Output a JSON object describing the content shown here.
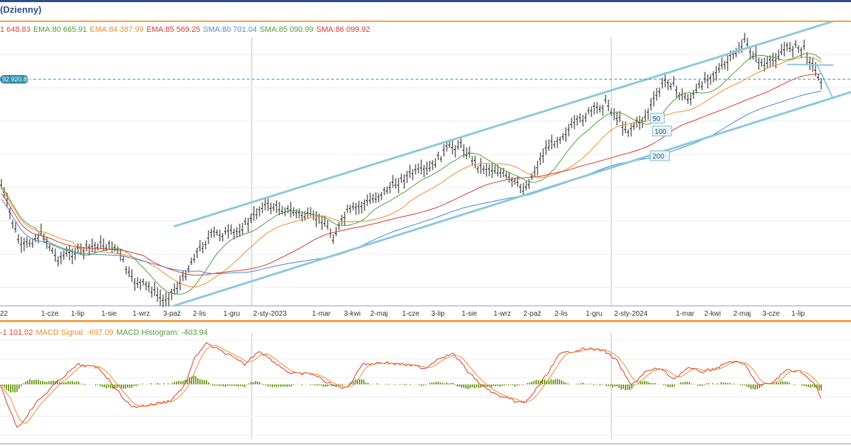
{
  "header": {
    "title": "Dzienny)"
  },
  "legend": {
    "items": [
      {
        "text": "1 648.83",
        "color": "#e0462f"
      },
      {
        "text": "EMA:80 665.91",
        "color": "#4aa136"
      },
      {
        "text": "EMA:84 387.99",
        "color": "#f08a2a"
      },
      {
        "text": "EMA:85 569.25",
        "color": "#d9362c"
      },
      {
        "text": "SMA:80 701.04",
        "color": "#4a8fd6"
      },
      {
        "text": "SMA:85 090.99",
        "color": "#4aa136"
      },
      {
        "text": "SMA:86 099.92",
        "color": "#d9362c"
      }
    ]
  },
  "macd_legend": {
    "items": [
      {
        "text": "-1 101.02",
        "color": "#e0462f"
      },
      {
        "text": "MACD Signal: -697.09",
        "color": "#f08a2a"
      },
      {
        "text": "MACD Histogram: -403.94",
        "color": "#4aa136"
      }
    ]
  },
  "price_marker": {
    "label": "92 920.89",
    "value": 92920.89
  },
  "channel_labels": [
    "50",
    "100",
    "200"
  ],
  "chart_data": {
    "type": "candlestick",
    "x_ticks": [
      "22",
      "1-cze",
      "1-lip",
      "1-sie",
      "1-wrz",
      "3-paź",
      "2-lis",
      "1-gru",
      "2-sty-2023",
      "1-mar",
      "3-kwi",
      "2-maj",
      "1-cze",
      "3-lip",
      "1-sie",
      "1-wrz",
      "2-paź",
      "2-lis",
      "1-gru",
      "2-sty-2024",
      "1-mar",
      "2-kwi",
      "2-maj",
      "3-cze",
      "1-lip"
    ],
    "indicators": [
      "EMA 50",
      "EMA 100",
      "EMA 200",
      "SMA 50",
      "SMA 100",
      "SMA 200",
      "MACD",
      "MACD Signal",
      "MACD Histogram"
    ],
    "last_values": {
      "close": 92920.89,
      "ema_50": 80665.91,
      "ema_100": 84387.99,
      "ema_200": 85569.25,
      "sma_50": 80701.04,
      "sma_100": 85090.99,
      "sma_200": 86099.92,
      "macd": -1101.02,
      "macd_signal": -697.09,
      "macd_histogram": -403.94
    },
    "annotations": [
      "rising channel",
      "50",
      "100",
      "200"
    ],
    "grid": true
  },
  "colors": {
    "candles": "#111111",
    "channel": "#8cc8e0",
    "ema_short": "#4aa136",
    "ema_mid": "#f08a2a",
    "ema_long": "#d9362c",
    "sma_long": "#4a7fd0",
    "marker_bg": "#2f8fa8",
    "separator": "#f5a142"
  }
}
